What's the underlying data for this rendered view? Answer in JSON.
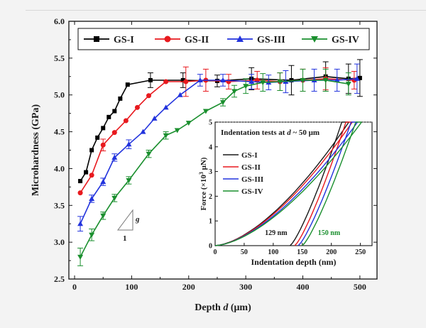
{
  "chart_data": [
    {
      "type": "line",
      "title": "",
      "xlabel": "Depth d (μm)",
      "xlabel_parts": {
        "before": "Depth ",
        "italic": "d",
        "after": " (μm)"
      },
      "ylabel": "Microhardness (GPa)",
      "xlim": [
        -10,
        530
      ],
      "ylim": [
        2.5,
        6.0
      ],
      "xticks": [
        0,
        100,
        200,
        300,
        400,
        500
      ],
      "yticks": [
        2.5,
        3.0,
        3.5,
        4.0,
        4.5,
        5.0,
        5.5,
        6.0
      ],
      "ytick_labels": [
        "2.5",
        "3.0",
        "3.5",
        "4.0",
        "4.5",
        "5.0",
        "5.5",
        "6.0"
      ],
      "legend_position": "top",
      "slope_annotation": {
        "top": "g",
        "bottom": "1"
      },
      "series": [
        {
          "name": "GS-I",
          "color": "#000000",
          "marker": "square",
          "x": [
            10,
            20,
            30,
            40,
            50,
            60,
            70,
            80,
            93,
            133,
            190,
            250,
            310,
            380,
            440,
            480,
            500
          ],
          "y": [
            3.83,
            3.95,
            4.25,
            4.42,
            4.55,
            4.7,
            4.78,
            4.95,
            5.14,
            5.2,
            5.2,
            5.19,
            5.22,
            5.2,
            5.25,
            5.22,
            5.23
          ],
          "err": [
            0,
            0,
            0,
            0,
            0,
            0,
            0,
            0,
            0,
            0.1,
            0.1,
            0.08,
            0.15,
            0.2,
            0.2,
            0.2,
            0.25
          ]
        },
        {
          "name": "GS-II",
          "color": "#e8191e",
          "marker": "circle",
          "x": [
            10,
            30,
            50,
            70,
            90,
            110,
            130,
            160,
            195,
            230,
            270,
            320,
            360,
            400,
            440,
            490
          ],
          "y": [
            3.67,
            3.91,
            4.32,
            4.49,
            4.65,
            4.83,
            4.99,
            5.18,
            5.18,
            5.2,
            5.18,
            5.2,
            5.18,
            5.2,
            5.22,
            5.2
          ],
          "err": [
            0,
            0,
            0.08,
            0,
            0,
            0,
            0,
            0,
            0.2,
            0.15,
            0.1,
            0.12,
            0.12,
            0.15,
            0.15,
            0.12
          ]
        },
        {
          "name": "GS-III",
          "color": "#2233dd",
          "marker": "triangle-up",
          "x": [
            10,
            30,
            50,
            70,
            95,
            120,
            140,
            160,
            185,
            220,
            260,
            310,
            340,
            370,
            420,
            460,
            495
          ],
          "y": [
            3.25,
            3.59,
            3.82,
            4.15,
            4.33,
            4.5,
            4.68,
            4.83,
            5.0,
            5.2,
            5.2,
            5.18,
            5.17,
            5.18,
            5.2,
            5.2,
            5.22
          ],
          "err": [
            0.1,
            0.05,
            0.05,
            0.05,
            0.06,
            0,
            0,
            0,
            0,
            0.08,
            0.08,
            0.1,
            0.1,
            0.15,
            0.15,
            0.15,
            0.2
          ]
        },
        {
          "name": "GS-IV",
          "color": "#1a8f2e",
          "marker": "triangle-down",
          "x": [
            10,
            30,
            50,
            70,
            95,
            130,
            160,
            180,
            200,
            230,
            260,
            280,
            300,
            330,
            360,
            400,
            440,
            480
          ],
          "y": [
            2.8,
            3.1,
            3.36,
            3.6,
            3.84,
            4.2,
            4.45,
            4.52,
            4.62,
            4.78,
            4.9,
            5.05,
            5.12,
            5.17,
            5.18,
            5.2,
            5.2,
            5.15
          ],
          "err": [
            0.12,
            0.08,
            0.05,
            0.05,
            0.05,
            0.05,
            0.05,
            0,
            0,
            0,
            0.05,
            0.08,
            0.1,
            0.12,
            0.12,
            0.15,
            0.15,
            0.15
          ]
        }
      ]
    },
    {
      "type": "line",
      "title": "Indentation tests at d ~ 50 μm",
      "title_parts": {
        "before": "Indentation tests at ",
        "italic": "d",
        "after": " ~ 50 μm"
      },
      "xlabel": "Indentation depth (nm)",
      "ylabel": "Force (×10³ μN)",
      "ylabel_parts": {
        "before": "Force (×10",
        "sup": "3",
        "after": " μN)"
      },
      "xlim": [
        0,
        270
      ],
      "ylim": [
        0,
        5
      ],
      "xticks": [
        0,
        50,
        100,
        150,
        200,
        250
      ],
      "yticks": [
        0,
        1,
        2,
        3,
        4,
        5
      ],
      "annotations": [
        {
          "text": "129 nm",
          "color": "#1a1a1a",
          "at_depth": 129
        },
        {
          "text": "150 nm",
          "color": "#1a8f2e",
          "at_depth": 150
        }
      ],
      "series": [
        {
          "name": "GS-I",
          "color": "#1a1a1a",
          "max_depth": 230,
          "residual_depth": 129,
          "unload_start": 218
        },
        {
          "name": "GS-II",
          "color": "#e8191e",
          "max_depth": 236,
          "residual_depth": 137,
          "unload_start": 225
        },
        {
          "name": "GS-III",
          "color": "#2233dd",
          "max_depth": 245,
          "residual_depth": 143,
          "unload_start": 234
        },
        {
          "name": "GS-IV",
          "color": "#1a8f2e",
          "max_depth": 252,
          "residual_depth": 150,
          "unload_start": 242
        }
      ]
    }
  ]
}
